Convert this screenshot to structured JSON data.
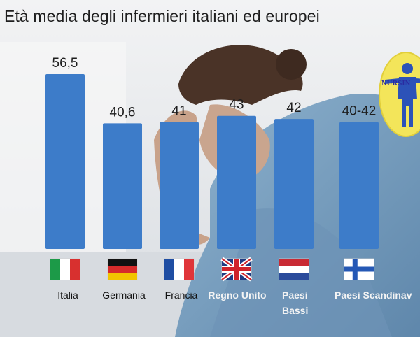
{
  "chart_data": {
    "type": "bar",
    "title": "Età media degli infermieri italiani ed europei",
    "categories": [
      "Italia",
      "Germania",
      "Francia",
      "Regno Unito",
      "Paesi Bassi",
      "Paesi Scandinavi"
    ],
    "category_labels_shown": [
      "Italia",
      "Germania",
      "Francia",
      "Regno Unito",
      "Paesi\nBassi",
      "Paesi Scandinav"
    ],
    "values": [
      56.5,
      40.6,
      41,
      43,
      42,
      41
    ],
    "value_labels": [
      "56,5",
      "40,6",
      "41",
      "43",
      "42",
      "40-42"
    ],
    "flags": [
      "italy-flag-icon",
      "germany-flag-icon",
      "france-flag-icon",
      "uk-flag-icon",
      "netherlands-flag-icon",
      "finland-flag-icon"
    ],
    "bar_color": "#3d7cc9",
    "grid": false,
    "legend": "none"
  },
  "logo": {
    "text": "NURSIN",
    "colors": {
      "disc": "#f3e55a",
      "figure": "#2c52b8"
    }
  }
}
